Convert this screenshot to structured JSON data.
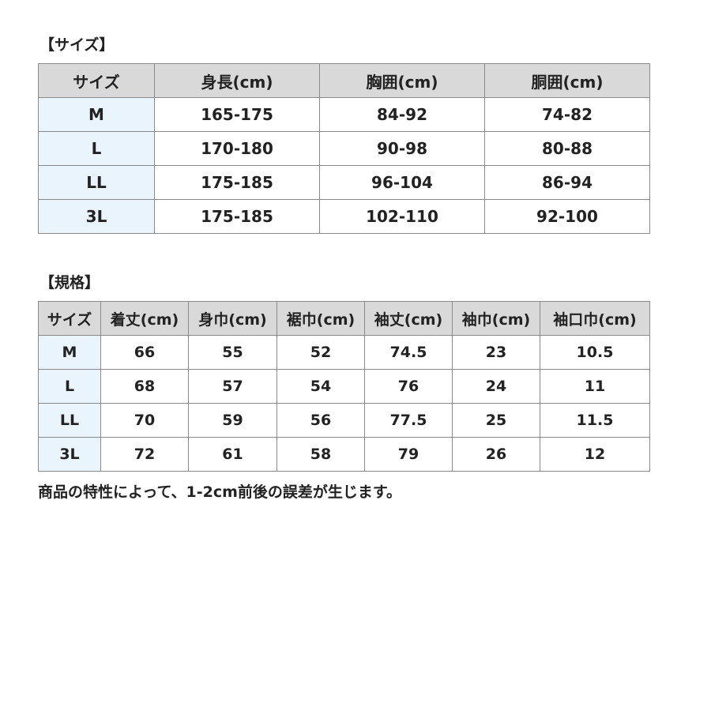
{
  "size_section": {
    "title": "【サイズ】",
    "headers": [
      "サイズ",
      "身長(cm)",
      "胸囲(cm)",
      "胴囲(cm)"
    ],
    "rows": [
      [
        "M",
        "165-175",
        "84-92",
        "74-82"
      ],
      [
        "L",
        "170-180",
        "90-98",
        "80-88"
      ],
      [
        "LL",
        "175-185",
        "96-104",
        "86-94"
      ],
      [
        "3L",
        "175-185",
        "102-110",
        "92-100"
      ]
    ]
  },
  "spec_section": {
    "title": "【規格】",
    "headers": [
      "サイズ",
      "着丈(cm)",
      "身巾(cm)",
      "裾巾(cm)",
      "袖丈(cm)",
      "袖巾(cm)",
      "袖口巾(cm)"
    ],
    "rows": [
      [
        "M",
        "66",
        "55",
        "52",
        "74.5",
        "23",
        "10.5"
      ],
      [
        "L",
        "68",
        "57",
        "54",
        "76",
        "24",
        "11"
      ],
      [
        "LL",
        "70",
        "59",
        "56",
        "77.5",
        "25",
        "11.5"
      ],
      [
        "3L",
        "72",
        "61",
        "58",
        "79",
        "26",
        "12"
      ]
    ]
  },
  "note": "商品の特性によって、1-2cm前後の誤差が生じます。",
  "colors": {
    "header_bg": "#d9d9d9",
    "first_col_bg": "#eaf4fc",
    "border": "#8a8a8a"
  }
}
